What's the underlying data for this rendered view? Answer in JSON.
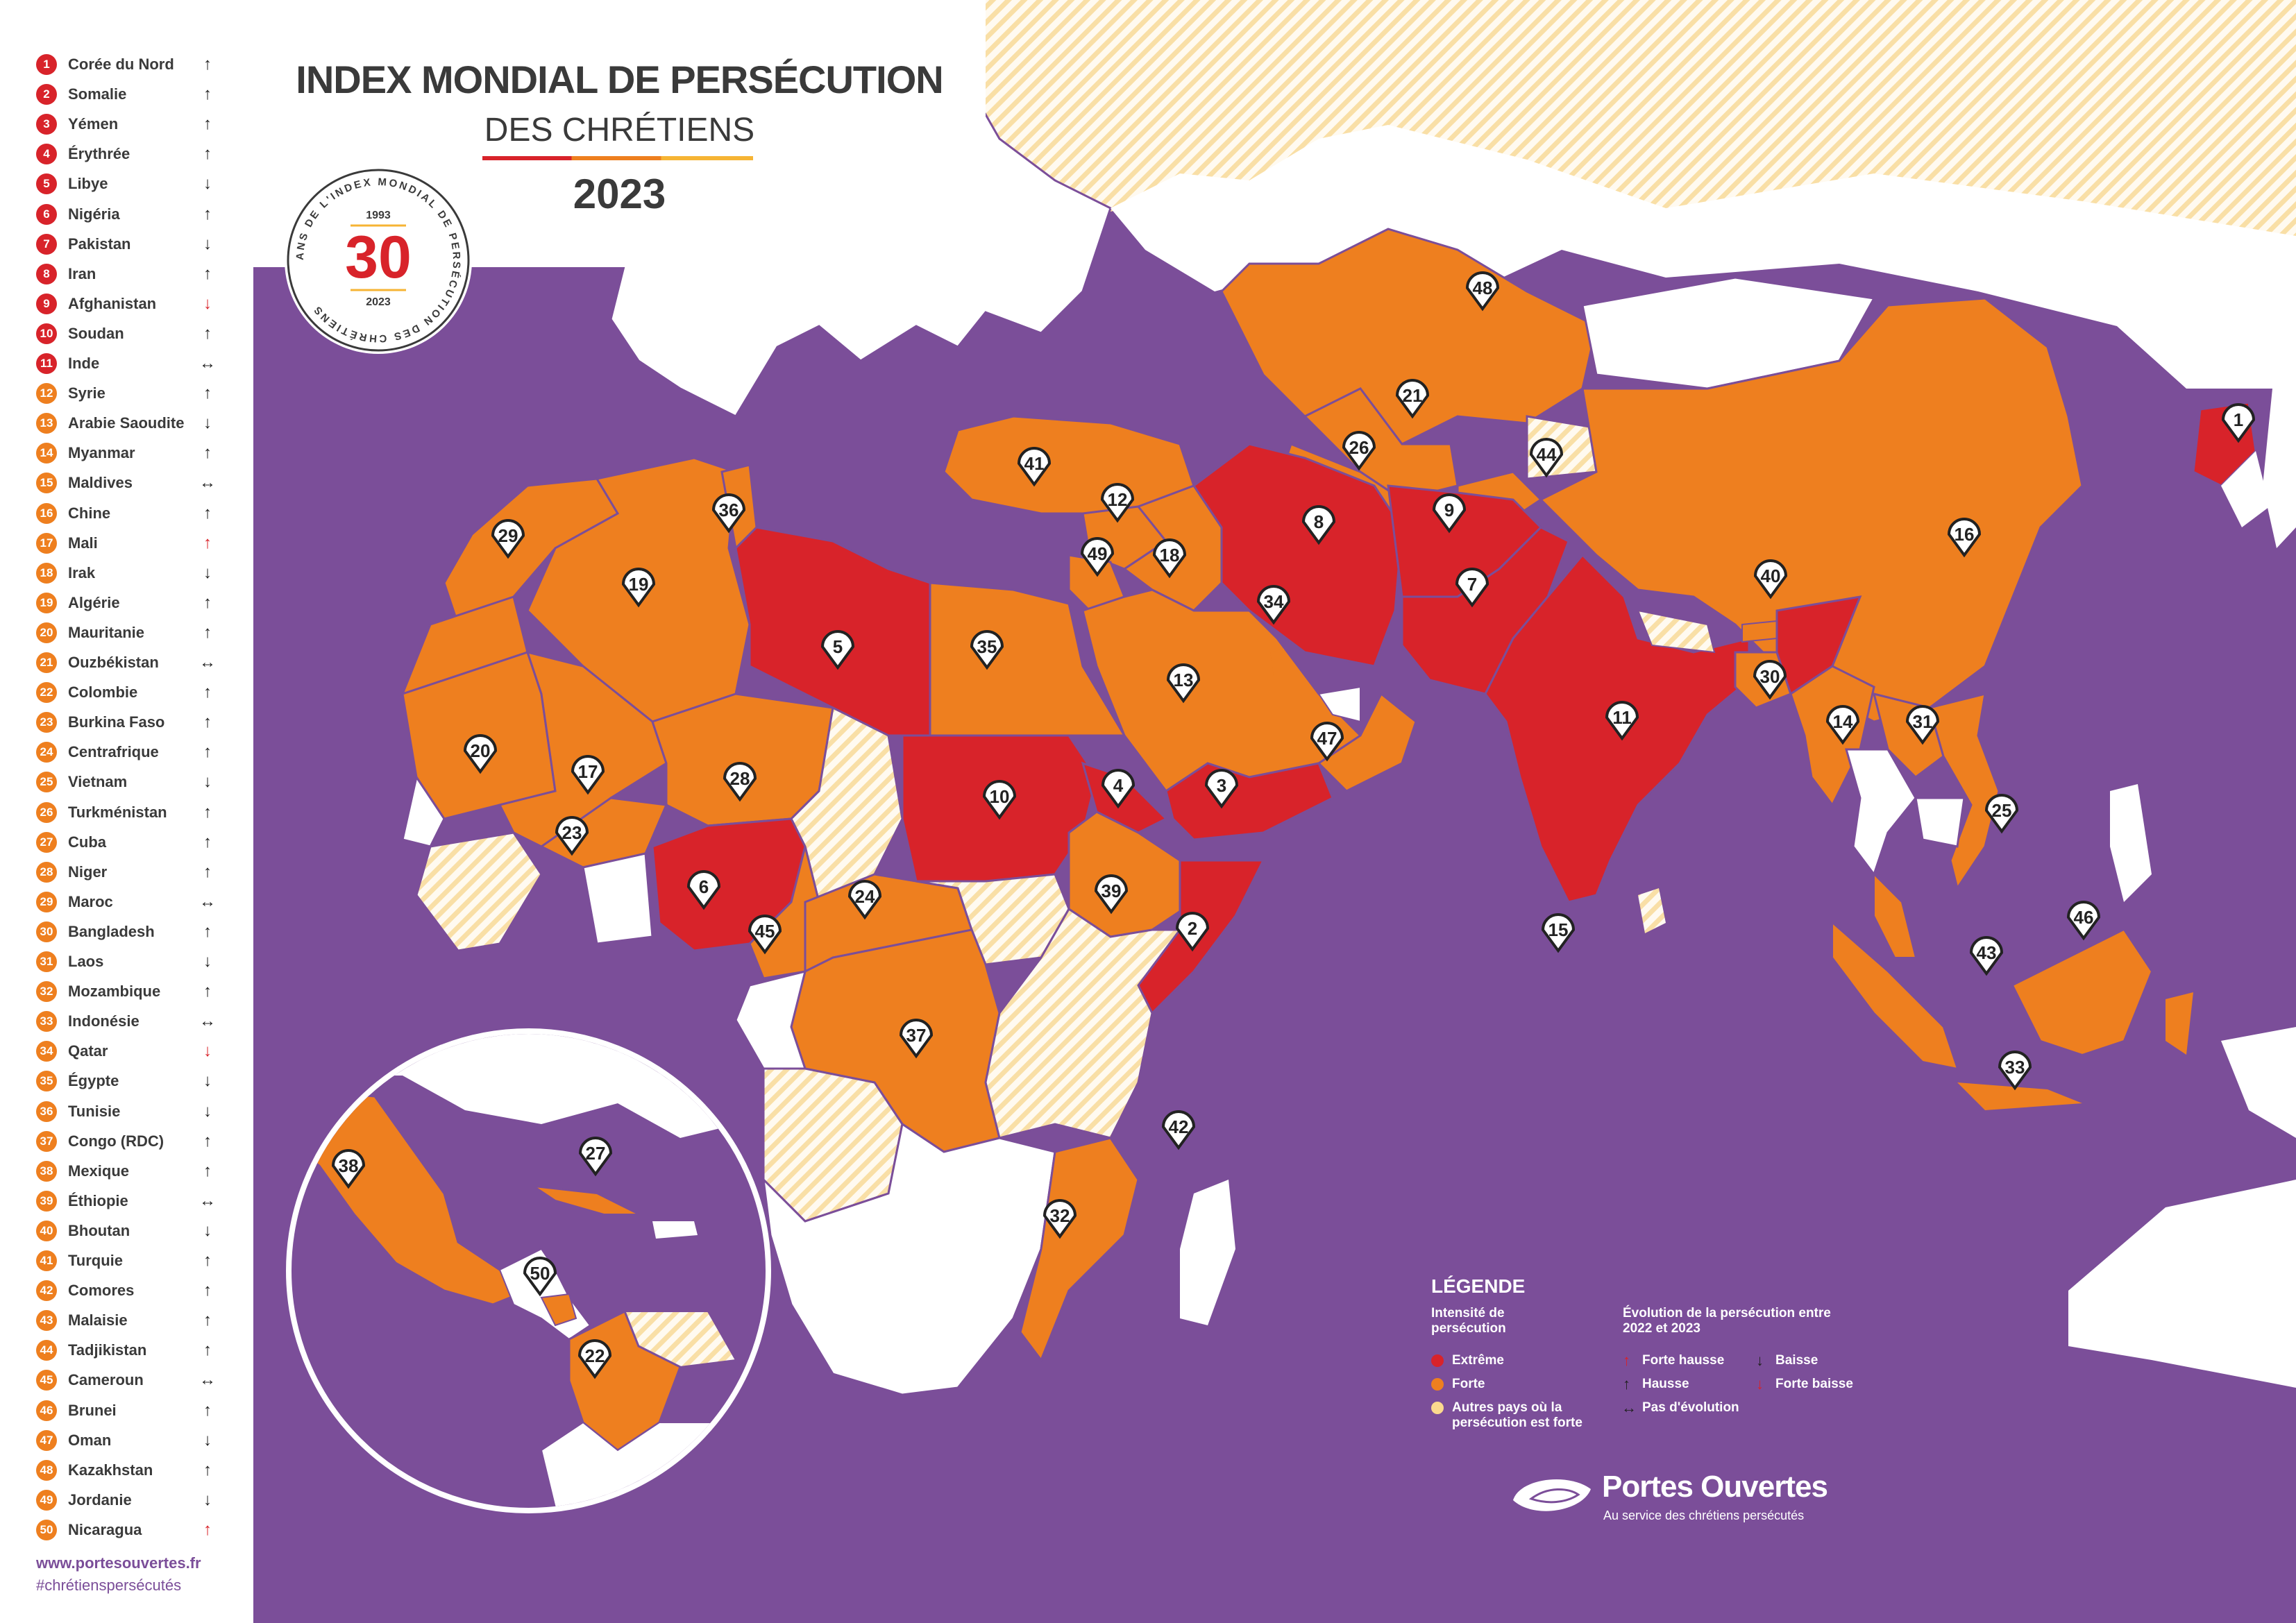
{
  "title": {
    "line1": "INDEX MONDIAL DE PERSÉCUTION",
    "line2": "DES CHRÉTIENS",
    "year": "2023"
  },
  "badge": {
    "ring_text": "ANS DE L'INDEX MONDIAL DE PERSÉCUTION DES CHRÉTIENS",
    "number": "30",
    "start": "1993",
    "end": "2023"
  },
  "colors": {
    "extreme": "#d8232a",
    "forte": "#ee7f1f",
    "autres": "#fbd98e",
    "ocean": "#7b4e99",
    "land": "#ffffff",
    "hatch": "#f9dfa6"
  },
  "rankings": [
    {
      "rank": "1",
      "country": "Corée du Nord",
      "level": "extreme",
      "trend": "hausse"
    },
    {
      "rank": "2",
      "country": "Somalie",
      "level": "extreme",
      "trend": "hausse"
    },
    {
      "rank": "3",
      "country": "Yémen",
      "level": "extreme",
      "trend": "hausse"
    },
    {
      "rank": "4",
      "country": "Érythrée",
      "level": "extreme",
      "trend": "hausse"
    },
    {
      "rank": "5",
      "country": "Libye",
      "level": "extreme",
      "trend": "baisse"
    },
    {
      "rank": "6",
      "country": "Nigéria",
      "level": "extreme",
      "trend": "hausse"
    },
    {
      "rank": "7",
      "country": "Pakistan",
      "level": "extreme",
      "trend": "baisse"
    },
    {
      "rank": "8",
      "country": "Iran",
      "level": "extreme",
      "trend": "hausse"
    },
    {
      "rank": "9",
      "country": "Afghanistan",
      "level": "extreme",
      "trend": "forte-baisse"
    },
    {
      "rank": "10",
      "country": "Soudan",
      "level": "extreme",
      "trend": "hausse"
    },
    {
      "rank": "11",
      "country": "Inde",
      "level": "extreme",
      "trend": "stable"
    },
    {
      "rank": "12",
      "country": "Syrie",
      "level": "forte",
      "trend": "hausse"
    },
    {
      "rank": "13",
      "country": "Arabie Saoudite",
      "level": "forte",
      "trend": "baisse"
    },
    {
      "rank": "14",
      "country": "Myanmar",
      "level": "forte",
      "trend": "hausse"
    },
    {
      "rank": "15",
      "country": "Maldives",
      "level": "forte",
      "trend": "stable"
    },
    {
      "rank": "16",
      "country": "Chine",
      "level": "forte",
      "trend": "hausse"
    },
    {
      "rank": "17",
      "country": "Mali",
      "level": "forte",
      "trend": "forte-hausse"
    },
    {
      "rank": "18",
      "country": "Irak",
      "level": "forte",
      "trend": "baisse"
    },
    {
      "rank": "19",
      "country": "Algérie",
      "level": "forte",
      "trend": "hausse"
    },
    {
      "rank": "20",
      "country": "Mauritanie",
      "level": "forte",
      "trend": "hausse"
    },
    {
      "rank": "21",
      "country": "Ouzbékistan",
      "level": "forte",
      "trend": "stable"
    },
    {
      "rank": "22",
      "country": "Colombie",
      "level": "forte",
      "trend": "hausse"
    },
    {
      "rank": "23",
      "country": "Burkina Faso",
      "level": "forte",
      "trend": "hausse"
    },
    {
      "rank": "24",
      "country": "Centrafrique",
      "level": "forte",
      "trend": "hausse"
    },
    {
      "rank": "25",
      "country": "Vietnam",
      "level": "forte",
      "trend": "baisse"
    },
    {
      "rank": "26",
      "country": "Turkménistan",
      "level": "forte",
      "trend": "hausse"
    },
    {
      "rank": "27",
      "country": "Cuba",
      "level": "forte",
      "trend": "hausse"
    },
    {
      "rank": "28",
      "country": "Niger",
      "level": "forte",
      "trend": "hausse"
    },
    {
      "rank": "29",
      "country": "Maroc",
      "level": "forte",
      "trend": "stable"
    },
    {
      "rank": "30",
      "country": "Bangladesh",
      "level": "forte",
      "trend": "hausse"
    },
    {
      "rank": "31",
      "country": "Laos",
      "level": "forte",
      "trend": "baisse"
    },
    {
      "rank": "32",
      "country": "Mozambique",
      "level": "forte",
      "trend": "hausse"
    },
    {
      "rank": "33",
      "country": "Indonésie",
      "level": "forte",
      "trend": "stable"
    },
    {
      "rank": "34",
      "country": "Qatar",
      "level": "forte",
      "trend": "forte-baisse"
    },
    {
      "rank": "35",
      "country": "Égypte",
      "level": "forte",
      "trend": "baisse"
    },
    {
      "rank": "36",
      "country": "Tunisie",
      "level": "forte",
      "trend": "baisse"
    },
    {
      "rank": "37",
      "country": "Congo (RDC)",
      "level": "forte",
      "trend": "hausse"
    },
    {
      "rank": "38",
      "country": "Mexique",
      "level": "forte",
      "trend": "hausse"
    },
    {
      "rank": "39",
      "country": "Éthiopie",
      "level": "forte",
      "trend": "stable"
    },
    {
      "rank": "40",
      "country": "Bhoutan",
      "level": "forte",
      "trend": "baisse"
    },
    {
      "rank": "41",
      "country": "Turquie",
      "level": "forte",
      "trend": "hausse"
    },
    {
      "rank": "42",
      "country": "Comores",
      "level": "forte",
      "trend": "hausse"
    },
    {
      "rank": "43",
      "country": "Malaisie",
      "level": "forte",
      "trend": "hausse"
    },
    {
      "rank": "44",
      "country": "Tadjikistan",
      "level": "forte",
      "trend": "hausse"
    },
    {
      "rank": "45",
      "country": "Cameroun",
      "level": "forte",
      "trend": "stable"
    },
    {
      "rank": "46",
      "country": "Brunei",
      "level": "forte",
      "trend": "hausse"
    },
    {
      "rank": "47",
      "country": "Oman",
      "level": "forte",
      "trend": "baisse"
    },
    {
      "rank": "48",
      "country": "Kazakhstan",
      "level": "forte",
      "trend": "hausse"
    },
    {
      "rank": "49",
      "country": "Jordanie",
      "level": "forte",
      "trend": "baisse"
    },
    {
      "rank": "50",
      "country": "Nicaragua",
      "level": "forte",
      "trend": "forte-hausse"
    }
  ],
  "trend_arrows": {
    "hausse": "↑",
    "forte-hausse": "↑",
    "baisse": "↓",
    "forte-baisse": "↓",
    "stable": "↔"
  },
  "footer": {
    "url": "www.portesouvertes.fr",
    "hashtag": "#chrétienspersécutés"
  },
  "legend": {
    "title": "LÉGENDE",
    "intensity_title": "Intensité de persécution",
    "intensity_items": [
      "Extrême",
      "Forte",
      "Autres pays où la persécution est forte"
    ],
    "evolution_title": "Évolution de la persécution entre 2022 et 2023",
    "evolution_items": [
      "Forte hausse",
      "Baisse",
      "Hausse",
      "Forte baisse",
      "Pas d'évolution"
    ]
  },
  "brand": {
    "name": "Portes Ouvertes",
    "tagline": "Au service des chrétiens persécutés"
  }
}
